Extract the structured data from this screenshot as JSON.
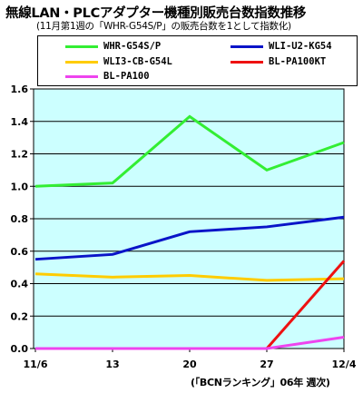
{
  "title": "無線LAN・PLCアダプター機種別販売台数指数推移",
  "subtitle": "(11月第1週の「WHR-G54S/P」の販売台数を1として指数化)",
  "source": "(「BCNランキング」06年 週次)",
  "chart_data": {
    "type": "line",
    "categories": [
      "11/6",
      "13",
      "20",
      "27",
      "12/4"
    ],
    "y_ticks": [
      "0.0",
      "0.2",
      "0.4",
      "0.6",
      "0.8",
      "1.0",
      "1.2",
      "1.4",
      "1.6"
    ],
    "ylim": [
      0,
      1.6
    ],
    "grid": true,
    "legend_position": "top",
    "series": [
      {
        "name": "WHR-G54S/P",
        "color": "#33ee33",
        "values": [
          1.0,
          1.02,
          1.43,
          1.1,
          1.27
        ]
      },
      {
        "name": "WLI-U2-KG54",
        "color": "#0a14c8",
        "values": [
          0.55,
          0.58,
          0.72,
          0.75,
          0.81
        ]
      },
      {
        "name": "WLI3-CB-G54L",
        "color": "#ffcc00",
        "values": [
          0.46,
          0.44,
          0.45,
          0.42,
          0.43
        ]
      },
      {
        "name": "BL-PA100KT",
        "color": "#ee1111",
        "values": [
          null,
          null,
          null,
          0.0,
          0.54
        ]
      },
      {
        "name": "BL-PA100",
        "color": "#ee44ee",
        "values": [
          0.0,
          0.0,
          0.0,
          0.0,
          0.07
        ]
      }
    ]
  }
}
